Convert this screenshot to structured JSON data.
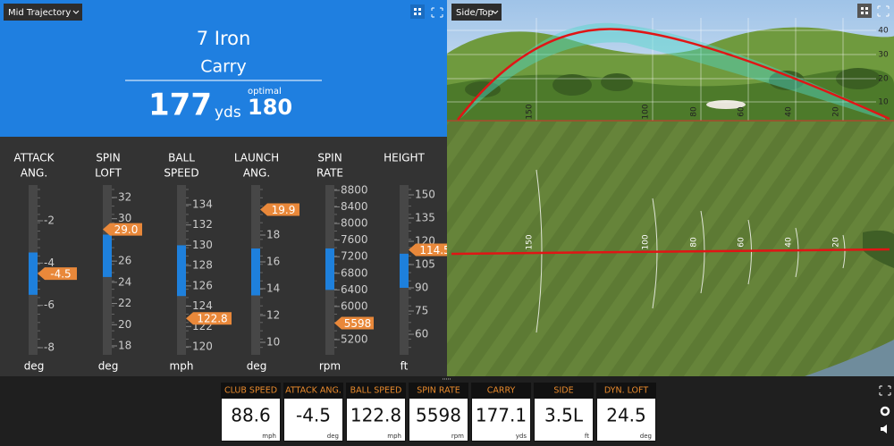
{
  "left_panel": {
    "view_select": "Mid Trajectory",
    "club": "7 Iron",
    "metric": "Carry",
    "carry_value": 177,
    "carry_unit": "yds",
    "optimal_label": "optimal",
    "optimal_value": 180
  },
  "gauges": [
    {
      "label_lines": [
        "ATTACK",
        "ANG."
      ],
      "ticks": [
        -2,
        -4,
        -6,
        -8
      ],
      "optimal_range": [
        -3.5,
        -5.5
      ],
      "value": -4.5,
      "unit": "deg"
    },
    {
      "label_lines": [
        "SPIN",
        "LOFT"
      ],
      "ticks": [
        32,
        30,
        26,
        24,
        22,
        20,
        18
      ],
      "optimal_range": [
        28.5,
        24.5
      ],
      "value": 29,
      "value_label": "29.0",
      "unit": "deg"
    },
    {
      "label_lines": [
        "BALL",
        "SPEED"
      ],
      "ticks": [
        134,
        132,
        130,
        128,
        126,
        124,
        122,
        120
      ],
      "optimal_range": [
        130,
        125
      ],
      "value": 122.8,
      "unit": "mph"
    },
    {
      "label_lines": [
        "LAUNCH",
        "ANG."
      ],
      "ticks": [
        18,
        16,
        14,
        12,
        10
      ],
      "optimal_range": [
        17,
        13.5
      ],
      "value": 19.9,
      "unit": "deg"
    },
    {
      "label_lines": [
        "SPIN",
        "RATE"
      ],
      "ticks": [
        8800,
        8400,
        8000,
        7600,
        7200,
        6800,
        6400,
        6000,
        5200
      ],
      "optimal_range": [
        7400,
        6400
      ],
      "value": 5598,
      "unit": "rpm"
    },
    {
      "label_lines": [
        "HEIGHT"
      ],
      "ticks": [
        150,
        135,
        120,
        105,
        90,
        75,
        60
      ],
      "optimal_range": [
        112,
        90
      ],
      "value": 114.5,
      "unit": "ft"
    }
  ],
  "right_panel": {
    "view_select": "Side/Top",
    "height_ticks": [
      40,
      30,
      20,
      10
    ],
    "side_distance_labels": [
      150,
      100,
      80,
      60,
      40,
      20
    ],
    "top_distance_labels": [
      150,
      100,
      80,
      60,
      40,
      20
    ]
  },
  "stats_bar": [
    {
      "label": "CLUB SPEED",
      "value": 88.6,
      "unit": "mph"
    },
    {
      "label": "ATTACK ANG.",
      "value": -4.5,
      "unit": "deg"
    },
    {
      "label": "BALL SPEED",
      "value": 122.8,
      "unit": "mph"
    },
    {
      "label": "SPIN RATE",
      "value": 5598,
      "unit": "rpm"
    },
    {
      "label": "CARRY",
      "value": 177.1,
      "unit": "yds"
    },
    {
      "label": "SIDE",
      "value": "3.5L",
      "unit": "ft"
    },
    {
      "label": "DYN. LOFT",
      "value": 24.5,
      "unit": "deg"
    }
  ]
}
